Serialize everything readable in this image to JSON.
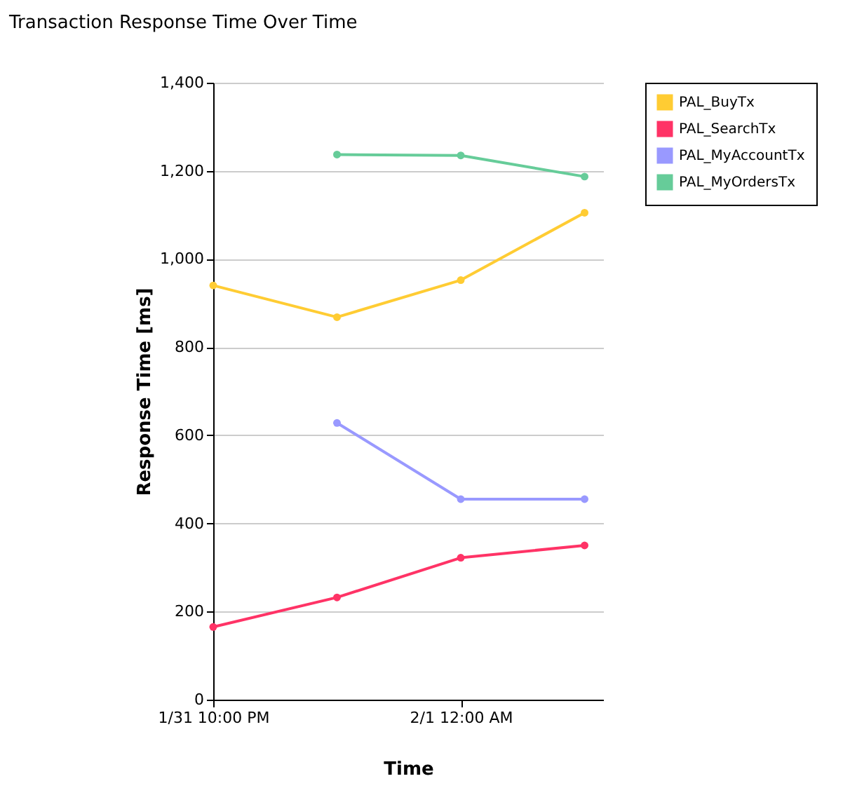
{
  "chart_data": {
    "type": "line",
    "title": "Transaction Response Time Over Time",
    "xlabel": "Time",
    "ylabel": "Response Time [ms]",
    "categories": [
      "1/31 10:00 PM",
      null,
      "2/1 12:00 AM",
      null
    ],
    "series": [
      {
        "name": "PAL_BuyTx",
        "color": "#ffcc33",
        "values": [
          940,
          868,
          952,
          1105
        ]
      },
      {
        "name": "PAL_SearchTx",
        "color": "#ff3366",
        "values": [
          165,
          232,
          322,
          350
        ]
      },
      {
        "name": "PAL_MyAccountTx",
        "color": "#9999ff",
        "values": [
          null,
          628,
          455,
          455
        ]
      },
      {
        "name": "PAL_MyOrdersTx",
        "color": "#66cc99",
        "values": [
          null,
          1237,
          1235,
          1187
        ]
      }
    ],
    "ylim": [
      0,
      1400
    ],
    "yticks": [
      0,
      200,
      400,
      600,
      800,
      {
        "value": 1000,
        "label": "1,000"
      },
      {
        "value": 1200,
        "label": "1,200"
      },
      {
        "value": 1400,
        "label": "1,400"
      }
    ],
    "grid": "y",
    "legend": "top right",
    "marker": "circle",
    "line_style": "solid"
  }
}
